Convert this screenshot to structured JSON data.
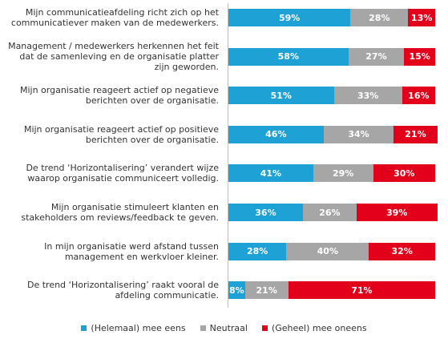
{
  "chart_data": {
    "type": "bar",
    "orientation": "horizontal",
    "stacked": true,
    "unit": "%",
    "categories": [
      [
        "Mijn communicatieafdeling richt zich op het",
        "communicatiever maken van de medewerkers."
      ],
      [
        "Management / medewerkers herkennen het feit",
        "dat de samenleving en de organisatie platter",
        "zijn geworden."
      ],
      [
        "Mijn organisatie reageert actief op negatieve",
        "berichten over de organisatie."
      ],
      [
        "Mijn organisatie reageert actief op positieve",
        "berichten over de organisatie."
      ],
      [
        "De trend ‘Horizontalisering’ verandert wijze",
        "waarop organisatie communiceert volledig."
      ],
      [
        "Mijn organisatie stimuleert klanten en",
        "stakeholders om reviews/feedback te geven."
      ],
      [
        "In mijn organisatie werd afstand tussen",
        "management en werkvloer kleiner."
      ],
      [
        "De trend ‘Horizontalisering’ raakt vooral de",
        "afdeling communicatie."
      ]
    ],
    "series": [
      {
        "name": "(Helemaal) mee eens",
        "color": "#1ea1d4",
        "values": [
          59,
          58,
          51,
          46,
          41,
          36,
          28,
          8
        ]
      },
      {
        "name": "Neutraal",
        "color": "#a6a6a6",
        "values": [
          28,
          27,
          33,
          34,
          29,
          26,
          40,
          21
        ]
      },
      {
        "name": "(Geheel) mee oneens",
        "color": "#e3001b",
        "values": [
          13,
          15,
          16,
          21,
          30,
          39,
          32,
          71
        ]
      }
    ],
    "xlim": [
      0,
      100
    ],
    "legend_position": "bottom"
  }
}
